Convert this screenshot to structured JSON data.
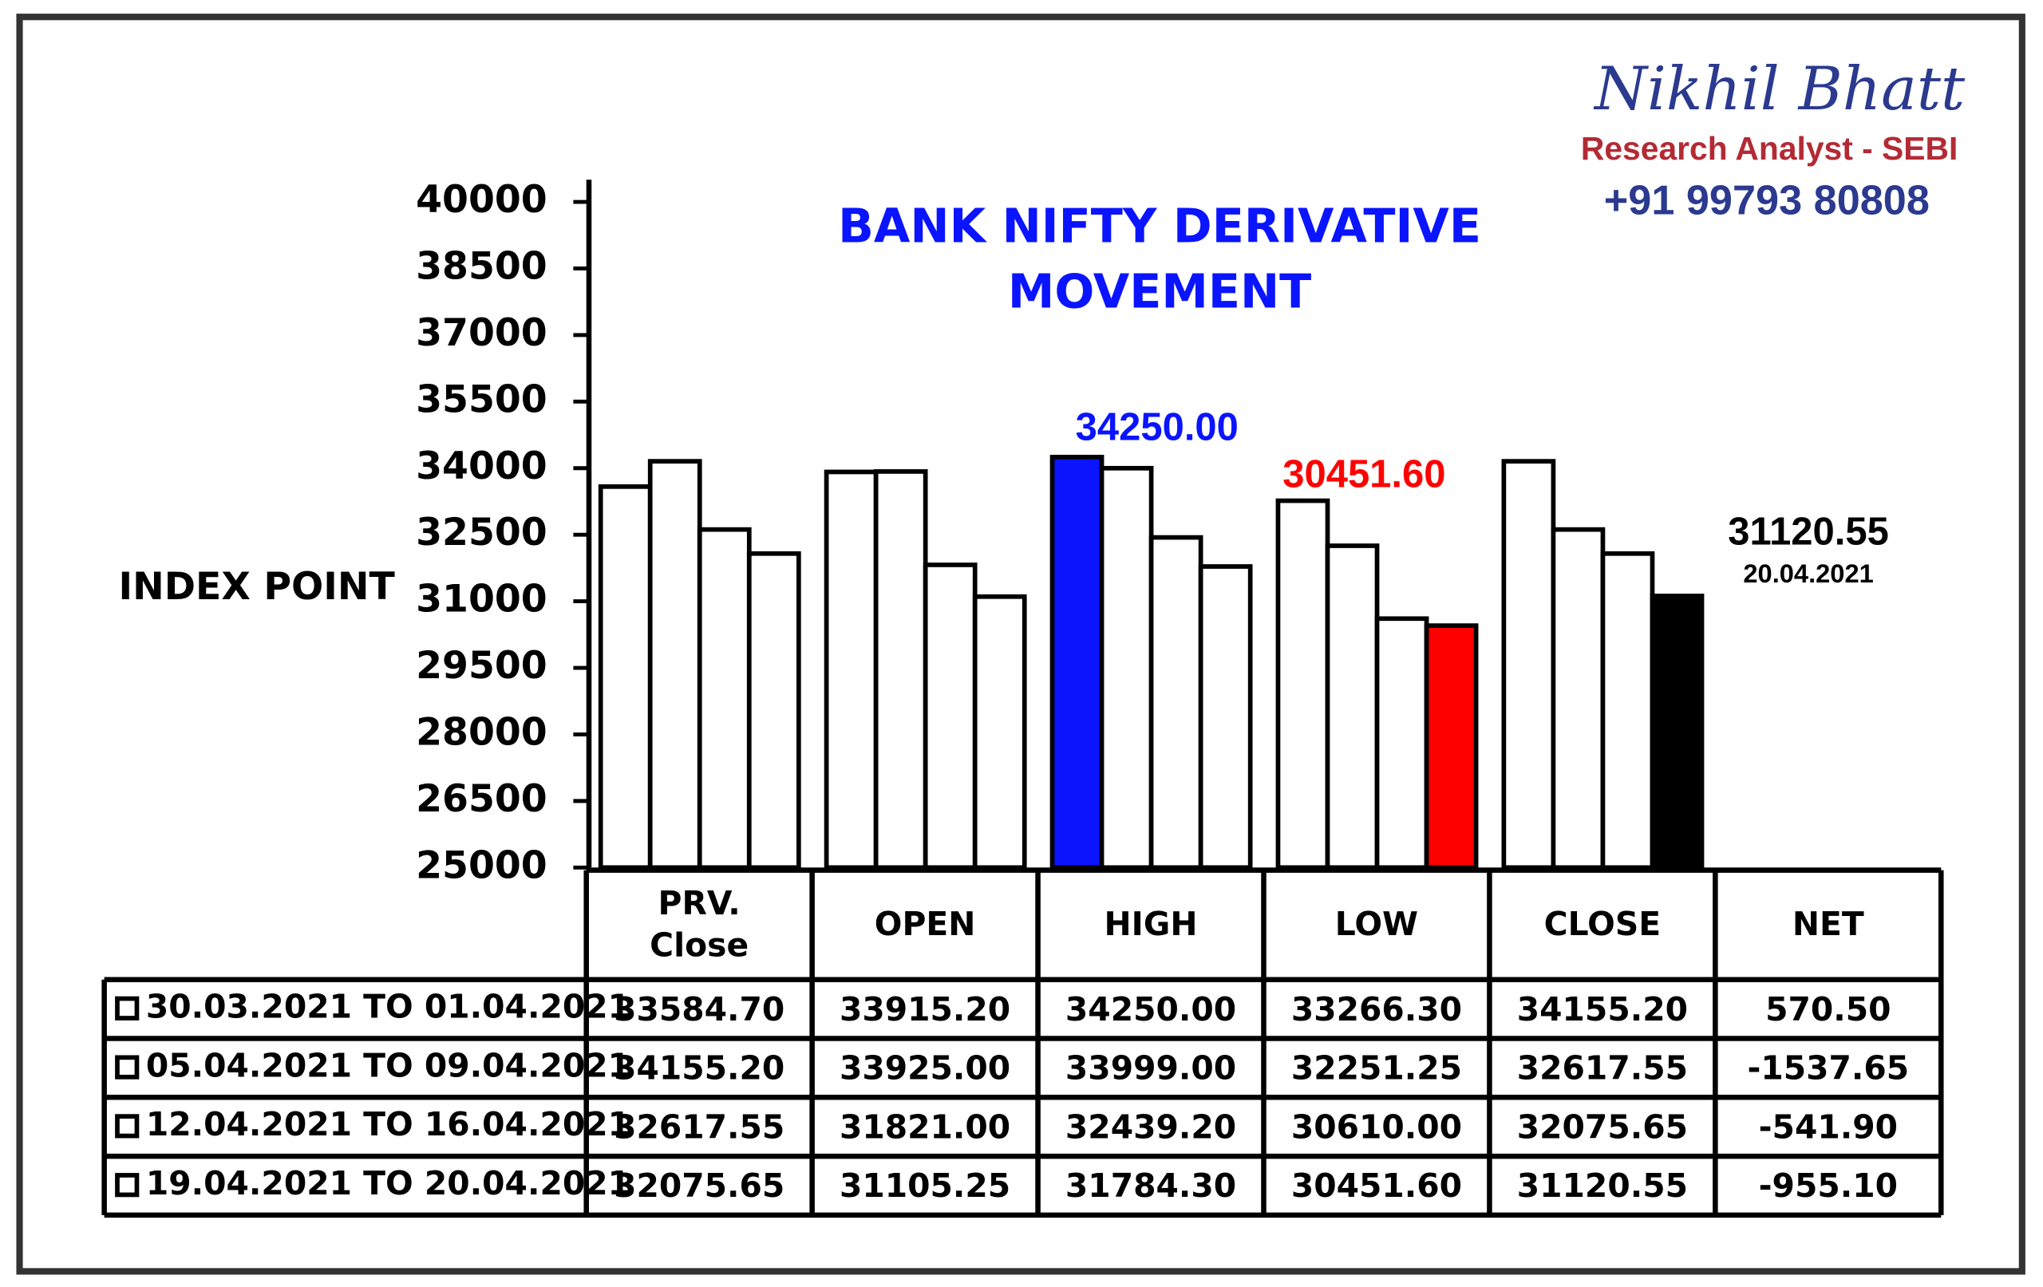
{
  "brand": {
    "name": "Nikhil Bhatt",
    "role": "Research Analyst - SEBI",
    "phone": "+91 99793 80808"
  },
  "chart_data": {
    "type": "bar",
    "title": "BANK NIFTY DERIVATIVE\nMOVEMENT",
    "y_label": "INDEX POINT",
    "categories": [
      "PRV.\nClose",
      "OPEN",
      "HIGH",
      "LOW",
      "CLOSE",
      "NET"
    ],
    "series": [
      {
        "name": "30.03.2021 TO 01.04.2021",
        "color": "#ffffff",
        "values": [
          33584.7,
          33915.2,
          34250,
          33266.3,
          34155.2,
          570.5
        ],
        "value_labels": [
          "33584.70",
          "33915.20",
          "34250.00",
          "33266.30",
          "34155.20",
          "570.50"
        ]
      },
      {
        "name": "05.04.2021 TO 09.04.2021",
        "color": "#ffffff",
        "values": [
          34155.2,
          33925,
          33999,
          32251.25,
          32617.55,
          -1537.65
        ],
        "value_labels": [
          "34155.20",
          "33925.00",
          "33999.00",
          "32251.25",
          "32617.55",
          "-1537.65"
        ]
      },
      {
        "name": "12.04.2021 TO 16.04.2021",
        "color": "#ffffff",
        "values": [
          32617.55,
          31821,
          32439.2,
          30610,
          32075.65,
          -541.9
        ],
        "value_labels": [
          "32617.55",
          "31821.00",
          "32439.20",
          "30610.00",
          "32075.65",
          "-541.90"
        ]
      },
      {
        "name": "19.04.2021 TO 20.04.2021",
        "color": "#ffffff",
        "values": [
          32075.65,
          31105.25,
          31784.3,
          30451.6,
          31120.55,
          -955.1
        ],
        "value_labels": [
          "32075.65",
          "31105.25",
          "31784.30",
          "30451.60",
          "31120.55",
          "-955.10"
        ]
      }
    ],
    "highlights": [
      {
        "series": 0,
        "category": 2,
        "color": "#0a14ff"
      },
      {
        "series": 3,
        "category": 3,
        "color": "#ff0000"
      },
      {
        "series": 3,
        "category": 4,
        "color": "#000000"
      }
    ],
    "annotations": [
      {
        "text": "34250.00",
        "color": "#0a14ff"
      },
      {
        "text": "30451.60",
        "color": "#ff0000"
      },
      {
        "text": "31120.55",
        "color": "#000000"
      },
      {
        "text": "20.04.2021",
        "color": "#000000"
      }
    ],
    "ylim": [
      25000,
      40000
    ],
    "yticks": [
      25000,
      26500,
      28000,
      29500,
      31000,
      32500,
      34000,
      35500,
      37000,
      38500,
      40000
    ],
    "grid": false
  }
}
